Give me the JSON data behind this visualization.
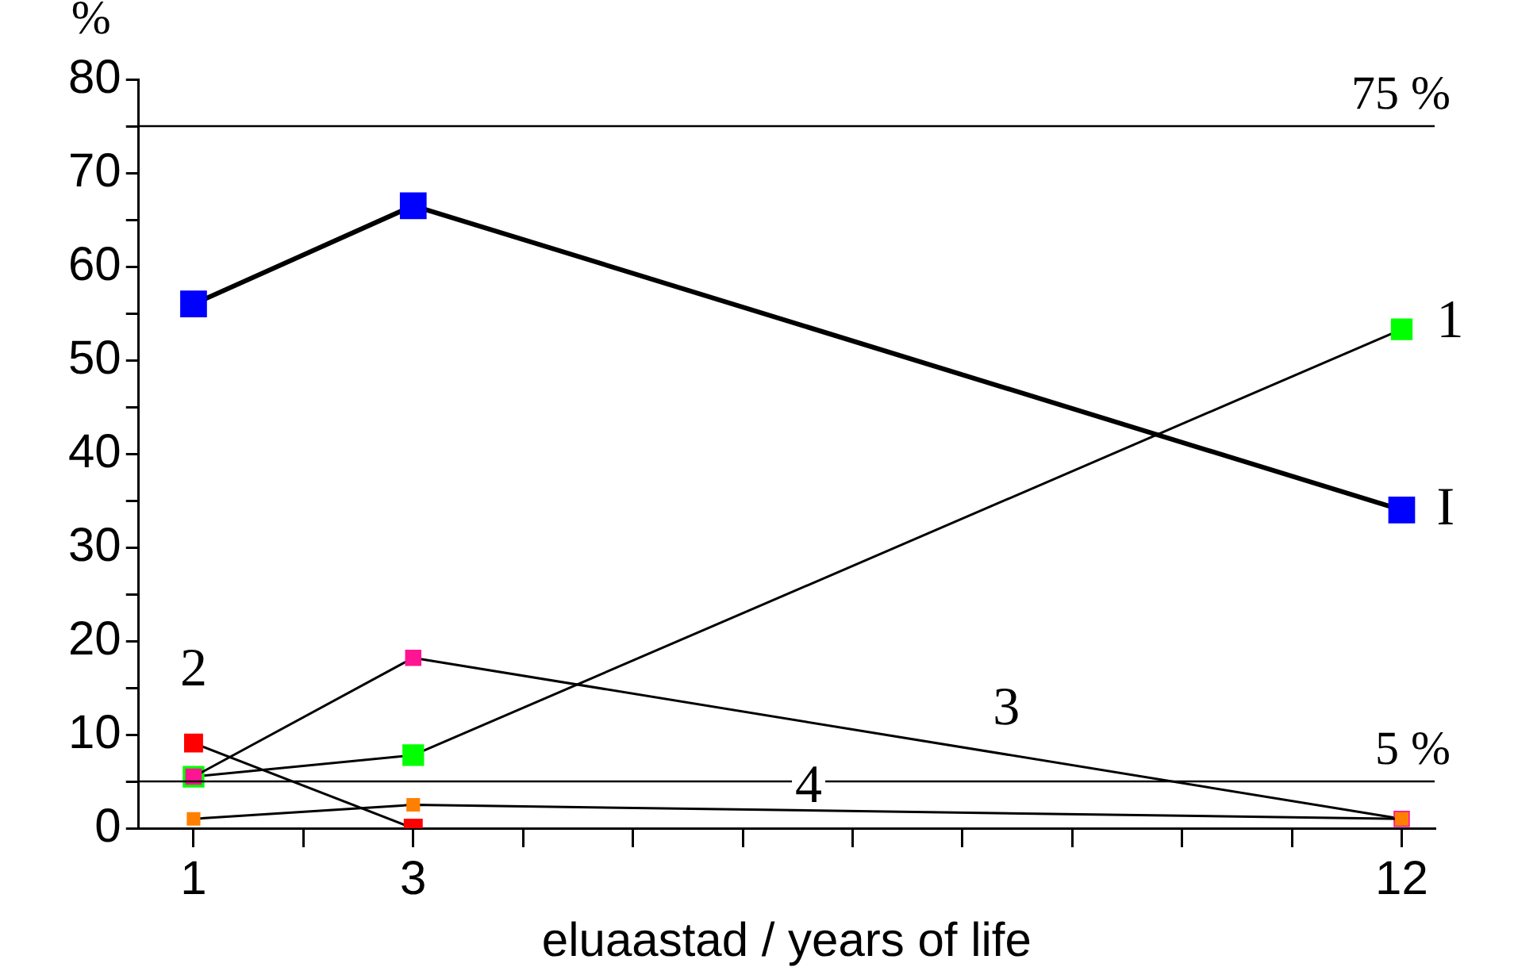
{
  "chart_data": {
    "type": "line",
    "xlabel": "eluaastad / years of life",
    "ylabel": "%",
    "x": [
      1,
      3,
      12
    ],
    "xlim": [
      0.5,
      12.3
    ],
    "xticks": [
      1,
      {
        "value": 2,
        "label": null
      },
      3,
      {
        "value": 4,
        "label": null
      },
      {
        "value": 5,
        "label": null
      },
      {
        "value": 6,
        "label": null
      },
      {
        "value": 7,
        "label": null
      },
      {
        "value": 8,
        "label": null
      },
      {
        "value": 9,
        "label": null
      },
      {
        "value": 10,
        "label": null
      },
      {
        "value": 11,
        "label": null
      },
      12
    ],
    "ylim": [
      0,
      80
    ],
    "yticks": [
      0,
      {
        "value": 5,
        "label": null
      },
      10,
      {
        "value": 15,
        "label": null
      },
      20,
      {
        "value": 25,
        "label": null
      },
      30,
      {
        "value": 35,
        "label": null
      },
      40,
      {
        "value": 45,
        "label": null
      },
      50,
      {
        "value": 55,
        "label": null
      },
      60,
      {
        "value": 65,
        "label": null
      },
      70,
      {
        "value": 75,
        "label": null
      },
      80
    ],
    "series": [
      {
        "name": "I",
        "color": "#0000ff",
        "values": [
          56,
          66.5,
          34
        ]
      },
      {
        "name": "1",
        "color": "#00ff00",
        "values": [
          5.5,
          7.8,
          53.3
        ]
      },
      {
        "name": "2",
        "color": "#ff0000",
        "values": [
          9.1,
          0,
          null
        ]
      },
      {
        "name": "3",
        "color": "#ff1493",
        "values": [
          5.5,
          18.2,
          1.0
        ]
      },
      {
        "name": "4",
        "color": "#ff8000",
        "values": [
          1.0,
          2.5,
          1.0
        ]
      }
    ],
    "ref_lines": [
      {
        "axis": "y",
        "value": 75,
        "label": "75 %",
        "color": "#000000"
      },
      {
        "axis": "y",
        "value": 5,
        "label": "5 %",
        "color": "#000000"
      }
    ],
    "marker": "square",
    "line_style": "solid",
    "grid": false,
    "legend": false
  }
}
